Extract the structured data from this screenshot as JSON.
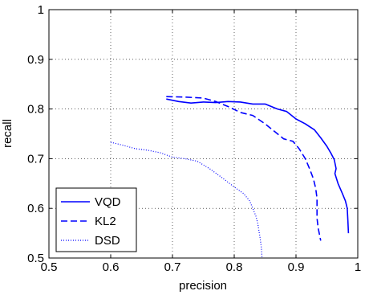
{
  "chart_data": {
    "type": "line",
    "xlabel": "precision",
    "ylabel": "recall",
    "xlim": [
      0.5,
      1.0
    ],
    "ylim": [
      0.5,
      1.0
    ],
    "xticks": [
      0.5,
      0.6,
      0.7,
      0.8,
      0.9,
      1.0
    ],
    "yticks": [
      0.5,
      0.6,
      0.7,
      0.8,
      0.9,
      1.0
    ],
    "xtick_labels": [
      "0.5",
      "0.6",
      "0.7",
      "0.8",
      "0.9",
      "1"
    ],
    "ytick_labels": [
      "0.5",
      "0.6",
      "0.7",
      "0.8",
      "0.9",
      "1"
    ],
    "grid": true,
    "legend_position": "bottom-left",
    "series": [
      {
        "name": "VQD",
        "style": "solid",
        "color": "#0000ff",
        "x": [
          0.69,
          0.71,
          0.73,
          0.75,
          0.77,
          0.79,
          0.81,
          0.83,
          0.85,
          0.87,
          0.885,
          0.9,
          0.915,
          0.93,
          0.94,
          0.95,
          0.957,
          0.962,
          0.965,
          0.963,
          0.968,
          0.975,
          0.98,
          0.983,
          0.984,
          0.985
        ],
        "y": [
          0.82,
          0.815,
          0.812,
          0.814,
          0.813,
          0.815,
          0.814,
          0.81,
          0.81,
          0.8,
          0.795,
          0.78,
          0.77,
          0.758,
          0.742,
          0.725,
          0.71,
          0.698,
          0.68,
          0.67,
          0.65,
          0.63,
          0.615,
          0.6,
          0.575,
          0.55
        ]
      },
      {
        "name": "KL2",
        "style": "dashed",
        "color": "#0000ff",
        "x": [
          0.69,
          0.72,
          0.75,
          0.77,
          0.79,
          0.81,
          0.83,
          0.85,
          0.865,
          0.88,
          0.895,
          0.905,
          0.915,
          0.922,
          0.928,
          0.932,
          0.934,
          0.934,
          0.934,
          0.936,
          0.94
        ],
        "y": [
          0.825,
          0.824,
          0.822,
          0.815,
          0.805,
          0.793,
          0.787,
          0.77,
          0.755,
          0.74,
          0.735,
          0.72,
          0.7,
          0.68,
          0.66,
          0.64,
          0.62,
          0.6,
          0.58,
          0.56,
          0.535
        ]
      },
      {
        "name": "DSD",
        "style": "dotted",
        "color": "#0000ff",
        "x": [
          0.6,
          0.62,
          0.64,
          0.66,
          0.68,
          0.7,
          0.72,
          0.74,
          0.76,
          0.78,
          0.8,
          0.815,
          0.825,
          0.83,
          0.835,
          0.838,
          0.84,
          0.842,
          0.844,
          0.845
        ],
        "y": [
          0.733,
          0.727,
          0.72,
          0.717,
          0.712,
          0.703,
          0.7,
          0.695,
          0.68,
          0.662,
          0.643,
          0.63,
          0.615,
          0.6,
          0.585,
          0.57,
          0.555,
          0.54,
          0.52,
          0.502
        ]
      }
    ]
  }
}
